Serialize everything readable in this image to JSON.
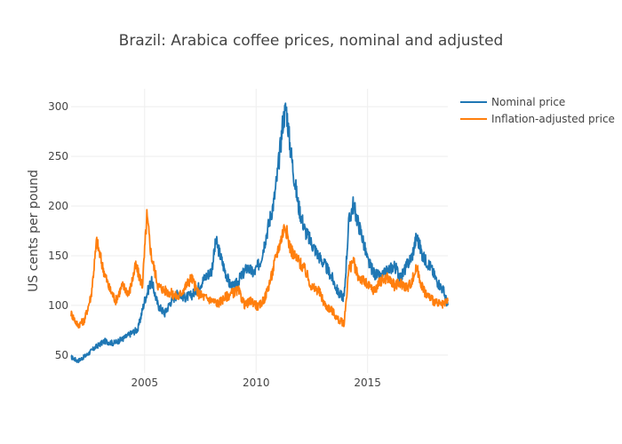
{
  "chart_data": {
    "type": "line",
    "title": "Brazil: Arabica coffee prices, nominal and adjusted",
    "xlabel": "",
    "ylabel": "US cents per pound",
    "xlim": [
      2001.7,
      2018.6
    ],
    "ylim": [
      32,
      318
    ],
    "x_ticks": [
      2005,
      2010,
      2015
    ],
    "x_tick_labels": [
      "2005",
      "2010",
      "2015"
    ],
    "y_ticks": [
      50,
      100,
      150,
      200,
      250,
      300
    ],
    "y_tick_labels": [
      "50",
      "100",
      "150",
      "200",
      "250",
      "300"
    ],
    "grid": true,
    "legend_position": "top-right",
    "series": [
      {
        "name": "Nominal price",
        "color": "#1f77b4",
        "x": [
          2001.7,
          2002.0,
          2002.4,
          2002.8,
          2003.2,
          2003.6,
          2004.0,
          2004.4,
          2004.7,
          2005.0,
          2005.3,
          2005.6,
          2005.9,
          2006.2,
          2006.5,
          2006.8,
          2007.1,
          2007.4,
          2007.7,
          2008.0,
          2008.2,
          2008.5,
          2008.8,
          2009.0,
          2009.3,
          2009.6,
          2009.9,
          2010.2,
          2010.5,
          2010.8,
          2011.0,
          2011.2,
          2011.35,
          2011.5,
          2011.7,
          2011.9,
          2012.2,
          2012.5,
          2012.8,
          2013.1,
          2013.4,
          2013.7,
          2013.95,
          2014.15,
          2014.35,
          2014.55,
          2014.75,
          2015.0,
          2015.3,
          2015.6,
          2015.9,
          2016.2,
          2016.5,
          2016.8,
          2017.0,
          2017.2,
          2017.5,
          2017.8,
          2018.1,
          2018.4,
          2018.6
        ],
        "values": [
          48,
          44,
          50,
          58,
          64,
          62,
          66,
          72,
          76,
          105,
          125,
          100,
          92,
          105,
          112,
          108,
          110,
          118,
          128,
          135,
          165,
          142,
          122,
          118,
          128,
          138,
          132,
          145,
          175,
          205,
          240,
          285,
          300,
          265,
          230,
          200,
          175,
          162,
          150,
          140,
          128,
          112,
          108,
          182,
          202,
          185,
          170,
          145,
          132,
          128,
          135,
          140,
          128,
          142,
          150,
          170,
          148,
          140,
          125,
          115,
          100
        ]
      },
      {
        "name": "Inflation-adjusted price",
        "color": "#ff7f0e",
        "x": [
          2001.7,
          2002.0,
          2002.3,
          2002.6,
          2002.85,
          2003.1,
          2003.4,
          2003.7,
          2004.0,
          2004.3,
          2004.6,
          2004.9,
          2005.1,
          2005.3,
          2005.6,
          2005.9,
          2006.2,
          2006.5,
          2006.8,
          2007.1,
          2007.4,
          2007.7,
          2008.0,
          2008.3,
          2008.6,
          2008.9,
          2009.2,
          2009.5,
          2009.8,
          2010.1,
          2010.4,
          2010.7,
          2010.9,
          2011.1,
          2011.3,
          2011.5,
          2011.7,
          2011.9,
          2012.2,
          2012.5,
          2012.8,
          2013.1,
          2013.4,
          2013.7,
          2013.95,
          2014.15,
          2014.35,
          2014.55,
          2014.8,
          2015.0,
          2015.3,
          2015.6,
          2015.9,
          2016.2,
          2016.5,
          2016.8,
          2017.0,
          2017.2,
          2017.5,
          2017.8,
          2018.1,
          2018.4,
          2018.6
        ],
        "values": [
          92,
          80,
          85,
          110,
          165,
          140,
          118,
          105,
          120,
          112,
          140,
          120,
          190,
          150,
          120,
          115,
          112,
          108,
          118,
          128,
          112,
          108,
          105,
          102,
          108,
          112,
          115,
          100,
          105,
          98,
          108,
          130,
          150,
          165,
          182,
          160,
          150,
          145,
          135,
          118,
          115,
          100,
          95,
          85,
          82,
          135,
          145,
          130,
          125,
          120,
          115,
          125,
          128,
          120,
          122,
          118,
          125,
          138,
          115,
          108,
          102,
          100,
          104
        ]
      }
    ]
  }
}
